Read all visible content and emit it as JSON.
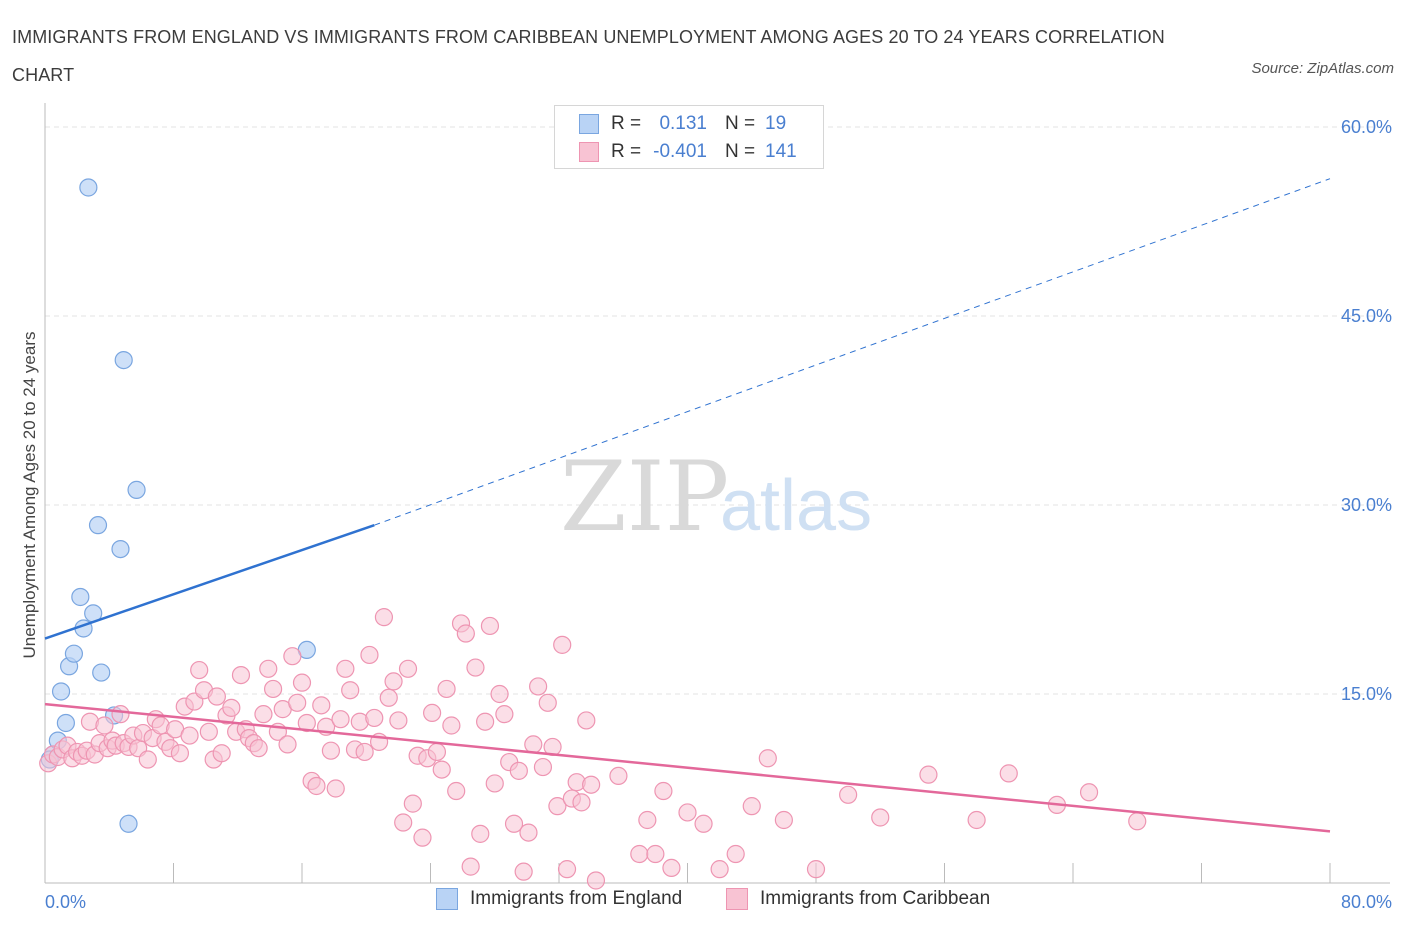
{
  "title": "IMMIGRANTS FROM ENGLAND VS IMMIGRANTS FROM CARIBBEAN UNEMPLOYMENT AMONG AGES 20 TO 24 YEARS CORRELATION CHART",
  "source": "Source: ZipAtlas.com",
  "watermark": {
    "zip": "ZIP",
    "atlas": "atlas"
  },
  "legend_top": {
    "rows": [
      {
        "r_label": "R =",
        "r_value": "0.131",
        "n_label": "N =",
        "n_value": "19"
      },
      {
        "r_label": "R =",
        "r_value": "-0.401",
        "n_label": "N =",
        "n_value": "141"
      }
    ]
  },
  "bottom_legend": [
    "Immigrants from England",
    "Immigrants from Caribbean"
  ],
  "colors": {
    "england_fill": "#b9d3f5",
    "england_stroke": "#7aa6e0",
    "england_line": "#2f72d0",
    "caribbean_fill": "#f8c3d3",
    "caribbean_stroke": "#ee95b2",
    "caribbean_line": "#e3689a",
    "tick_text": "#4a7fd0",
    "grid": "#e3e3e3"
  },
  "chart_data": {
    "type": "scatter",
    "title": "IMMIGRANTS FROM ENGLAND VS IMMIGRANTS FROM CARIBBEAN UNEMPLOYMENT AMONG AGES 20 TO 24 YEARS CORRELATION CHART",
    "xlabel": "",
    "ylabel": "Unemployment Among Ages 20 to 24 years",
    "xlim": [
      0,
      80
    ],
    "ylim": [
      0,
      60
    ],
    "x_tick_labels": [
      "0.0%",
      "80.0%"
    ],
    "y_ticks": [
      15,
      30,
      45,
      60
    ],
    "y_tick_labels": [
      "15.0%",
      "30.0%",
      "45.0%",
      "60.0%"
    ],
    "grid": true,
    "series": [
      {
        "name": "Immigrants from England",
        "r": 0.131,
        "n": 19,
        "points": [
          [
            0.5,
            10.2
          ],
          [
            0.8,
            11.3
          ],
          [
            1.0,
            15.2
          ],
          [
            1.3,
            12.7
          ],
          [
            1.5,
            17.2
          ],
          [
            1.8,
            18.2
          ],
          [
            2.2,
            22.7
          ],
          [
            2.4,
            20.2
          ],
          [
            2.7,
            55.2
          ],
          [
            3.0,
            21.4
          ],
          [
            3.3,
            28.4
          ],
          [
            3.5,
            16.7
          ],
          [
            4.3,
            13.3
          ],
          [
            4.7,
            26.5
          ],
          [
            4.9,
            41.5
          ],
          [
            5.2,
            4.7
          ],
          [
            5.7,
            31.2
          ],
          [
            16.3,
            18.5
          ],
          [
            0.3,
            9.8
          ]
        ],
        "trend": {
          "x0": 0,
          "y0": 19.4,
          "x1": 20.5,
          "y1": 28.4,
          "dash_to_x": 80,
          "dash_to_y": 55.9
        }
      },
      {
        "name": "Immigrants from Caribbean",
        "r": -0.401,
        "n": 141,
        "points": [
          [
            0.2,
            9.5
          ],
          [
            0.5,
            10.2
          ],
          [
            0.8,
            10.0
          ],
          [
            1.1,
            10.6
          ],
          [
            1.4,
            10.9
          ],
          [
            1.7,
            9.9
          ],
          [
            2.0,
            10.4
          ],
          [
            2.3,
            10.1
          ],
          [
            2.6,
            10.5
          ],
          [
            2.8,
            12.8
          ],
          [
            3.1,
            10.2
          ],
          [
            3.4,
            11.1
          ],
          [
            3.7,
            12.5
          ],
          [
            3.9,
            10.7
          ],
          [
            4.2,
            11.3
          ],
          [
            4.4,
            10.9
          ],
          [
            4.7,
            13.4
          ],
          [
            4.9,
            11.1
          ],
          [
            5.2,
            10.8
          ],
          [
            5.5,
            11.7
          ],
          [
            5.8,
            10.7
          ],
          [
            6.1,
            11.9
          ],
          [
            6.4,
            9.8
          ],
          [
            6.7,
            11.5
          ],
          [
            6.9,
            13.0
          ],
          [
            7.2,
            12.5
          ],
          [
            7.5,
            11.2
          ],
          [
            7.8,
            10.7
          ],
          [
            8.1,
            12.2
          ],
          [
            8.4,
            10.3
          ],
          [
            8.7,
            14.0
          ],
          [
            9.0,
            11.7
          ],
          [
            9.3,
            14.4
          ],
          [
            9.6,
            16.9
          ],
          [
            9.9,
            15.3
          ],
          [
            10.2,
            12.0
          ],
          [
            10.5,
            9.8
          ],
          [
            10.7,
            14.8
          ],
          [
            11.0,
            10.3
          ],
          [
            11.3,
            13.3
          ],
          [
            11.6,
            13.9
          ],
          [
            11.9,
            12.0
          ],
          [
            12.2,
            16.5
          ],
          [
            12.5,
            12.2
          ],
          [
            12.7,
            11.5
          ],
          [
            13.0,
            11.1
          ],
          [
            13.3,
            10.7
          ],
          [
            13.6,
            13.4
          ],
          [
            13.9,
            17.0
          ],
          [
            14.2,
            15.4
          ],
          [
            14.5,
            12.0
          ],
          [
            14.8,
            13.8
          ],
          [
            15.1,
            11.0
          ],
          [
            15.4,
            18.0
          ],
          [
            15.7,
            14.3
          ],
          [
            16.0,
            15.9
          ],
          [
            16.3,
            12.7
          ],
          [
            16.6,
            8.1
          ],
          [
            16.9,
            7.7
          ],
          [
            17.2,
            14.1
          ],
          [
            17.5,
            12.4
          ],
          [
            17.8,
            10.5
          ],
          [
            18.1,
            7.5
          ],
          [
            18.4,
            13.0
          ],
          [
            18.7,
            17.0
          ],
          [
            19.0,
            15.3
          ],
          [
            19.3,
            10.6
          ],
          [
            19.6,
            12.8
          ],
          [
            19.9,
            10.4
          ],
          [
            20.2,
            18.1
          ],
          [
            20.5,
            13.1
          ],
          [
            20.8,
            11.2
          ],
          [
            21.1,
            21.1
          ],
          [
            21.4,
            14.7
          ],
          [
            21.7,
            16.0
          ],
          [
            22.0,
            12.9
          ],
          [
            22.3,
            4.8
          ],
          [
            22.6,
            17.0
          ],
          [
            22.9,
            6.3
          ],
          [
            23.2,
            10.1
          ],
          [
            23.5,
            3.6
          ],
          [
            23.8,
            9.9
          ],
          [
            24.1,
            13.5
          ],
          [
            24.4,
            10.4
          ],
          [
            24.7,
            9.0
          ],
          [
            25.0,
            15.4
          ],
          [
            25.3,
            12.5
          ],
          [
            25.6,
            7.3
          ],
          [
            25.9,
            20.6
          ],
          [
            26.2,
            19.8
          ],
          [
            26.5,
            1.3
          ],
          [
            26.8,
            17.1
          ],
          [
            27.1,
            3.9
          ],
          [
            27.4,
            12.8
          ],
          [
            27.7,
            20.4
          ],
          [
            28.0,
            7.9
          ],
          [
            28.3,
            15.0
          ],
          [
            28.6,
            13.4
          ],
          [
            28.9,
            9.6
          ],
          [
            29.2,
            4.7
          ],
          [
            29.5,
            8.9
          ],
          [
            29.8,
            0.9
          ],
          [
            30.1,
            4.0
          ],
          [
            30.4,
            11.0
          ],
          [
            30.7,
            15.6
          ],
          [
            31.0,
            9.2
          ],
          [
            31.3,
            14.3
          ],
          [
            31.6,
            10.8
          ],
          [
            31.9,
            6.1
          ],
          [
            32.2,
            18.9
          ],
          [
            32.5,
            1.1
          ],
          [
            32.8,
            6.7
          ],
          [
            33.1,
            8.0
          ],
          [
            33.4,
            6.4
          ],
          [
            33.7,
            12.9
          ],
          [
            34.0,
            7.8
          ],
          [
            34.3,
            0.2
          ],
          [
            35.7,
            8.5
          ],
          [
            37.0,
            2.3
          ],
          [
            37.5,
            5.0
          ],
          [
            38.0,
            2.3
          ],
          [
            38.5,
            7.3
          ],
          [
            39.0,
            1.2
          ],
          [
            40.0,
            5.6
          ],
          [
            41.0,
            4.7
          ],
          [
            42.0,
            1.1
          ],
          [
            43.0,
            2.3
          ],
          [
            44.0,
            6.1
          ],
          [
            45.0,
            9.9
          ],
          [
            46.0,
            5.0
          ],
          [
            48.0,
            1.1
          ],
          [
            50.0,
            7.0
          ],
          [
            52.0,
            5.2
          ],
          [
            55.0,
            8.6
          ],
          [
            58.0,
            5.0
          ],
          [
            60.0,
            8.7
          ],
          [
            63.0,
            6.2
          ],
          [
            65.0,
            7.2
          ],
          [
            68.0,
            4.9
          ]
        ],
        "trend": {
          "x0": 0,
          "y0": 14.2,
          "x1": 80,
          "y1": 4.1
        }
      }
    ]
  }
}
